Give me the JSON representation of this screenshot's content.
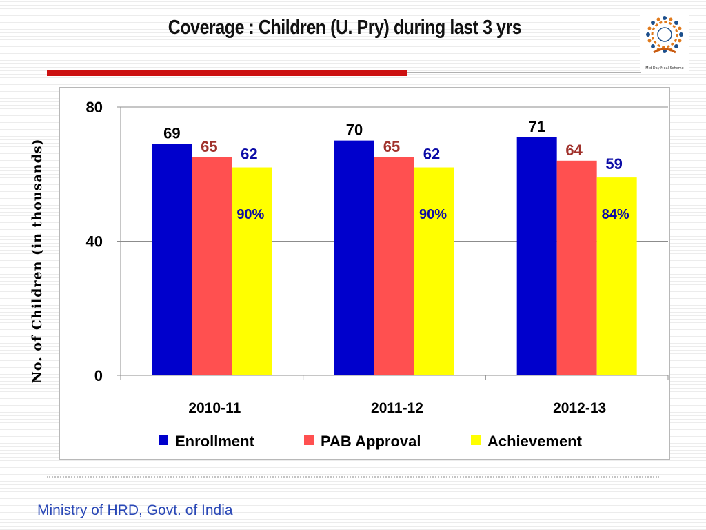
{
  "slide": {
    "title": "Coverage : Children (U. Pry) during last 3 yrs",
    "footer": "Ministry of HRD, Govt. of India",
    "logo_caption": "Mid Day Meal Scheme"
  },
  "colors": {
    "title_rule": "#cc1111",
    "footer_text": "#2a48b6",
    "enrollment": "#0000cc",
    "pab_approval": "#ff5050",
    "achievement": "#ffff00",
    "enrollment_label": "#000000",
    "pab_label": "#a0322c",
    "achievement_label": "#0b0ba6"
  },
  "chart_data": {
    "type": "bar",
    "ylabel": "No. of Children (in thousands)",
    "xlabel": "",
    "ylim": [
      0,
      80
    ],
    "yticks": [
      0,
      40,
      80
    ],
    "grid": true,
    "legend_position": "bottom",
    "categories": [
      "2010-11",
      "2011-12",
      "2012-13"
    ],
    "series": [
      {
        "name": "Enrollment",
        "values": [
          69,
          70,
          71
        ],
        "color": "#0000cc",
        "label_color": "#000000"
      },
      {
        "name": "PAB Approval",
        "values": [
          65,
          65,
          64
        ],
        "color": "#ff5050",
        "label_color": "#a0322c"
      },
      {
        "name": "Achievement",
        "values": [
          62,
          62,
          59
        ],
        "color": "#ffff00",
        "label_color": "#0b0ba6"
      }
    ],
    "annotations": [
      "90%",
      "90%",
      "84%"
    ]
  }
}
